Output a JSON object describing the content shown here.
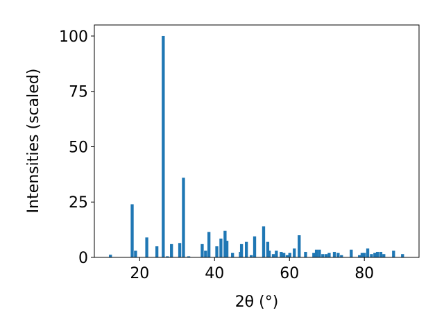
{
  "chart_data": {
    "type": "bar",
    "xlabel": "2θ (°)",
    "ylabel": "Intensities (scaled)",
    "x": [
      12.2,
      18.0,
      18.9,
      21.9,
      24.6,
      26.3,
      27.4,
      28.5,
      30.7,
      31.7,
      33.1,
      36.7,
      37.6,
      38.5,
      40.6,
      41.7,
      42.8,
      43.3,
      44.8,
      46.9,
      47.2,
      48.5,
      49.8,
      50.7,
      53.1,
      54.2,
      54.6,
      55.7,
      56.5,
      57.8,
      58.5,
      59.4,
      60.1,
      61.3,
      62.6,
      64.3,
      66.5,
      67.2,
      68.0,
      68.9,
      69.8,
      70.6,
      72.0,
      73.0,
      73.9,
      76.5,
      78.7,
      79.4,
      80.0,
      80.9,
      81.9,
      82.8,
      83.5,
      84.4,
      85.2,
      87.8,
      90.2
    ],
    "values": [
      1.2,
      24,
      3,
      9,
      5,
      100,
      0.5,
      6,
      6.5,
      36,
      0.5,
      6,
      3,
      11.5,
      5,
      8.5,
      12,
      7.5,
      2,
      2.5,
      6,
      7,
      1,
      9.5,
      14,
      7,
      3,
      1.5,
      3,
      2.5,
      2,
      1,
      2,
      4,
      10,
      2.5,
      2,
      3.5,
      3.5,
      1.5,
      1.5,
      2,
      2.5,
      2,
      1,
      3.5,
      1,
      2,
      2,
      4,
      1.5,
      2,
      2.5,
      2.5,
      1.5,
      3,
      1.5
    ],
    "color": "#1f77b4",
    "xlim": [
      7.9,
      94.6
    ],
    "xticks": [
      20,
      40,
      60,
      80
    ],
    "ylim": [
      0,
      105
    ],
    "yticks": [
      0,
      25,
      50,
      75,
      100
    ]
  }
}
